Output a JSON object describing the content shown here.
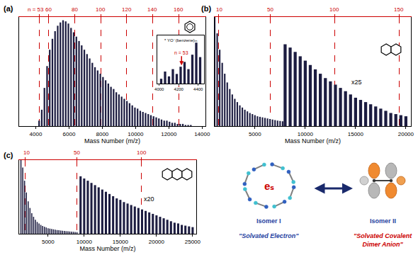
{
  "chart_data": [
    {
      "type": "bar",
      "panel": "(a)",
      "x_title": "Mass Number (m/z)",
      "color": "#1c1c40",
      "x": [
        4200,
        4360,
        4520,
        4680,
        4840,
        5000,
        5160,
        5320,
        5480,
        5640,
        5800,
        5960,
        6120,
        6280,
        6440,
        6600,
        6760,
        6920,
        7080,
        7240,
        7400,
        7560,
        7720,
        7880,
        8040,
        8200,
        8360,
        8520,
        8680,
        8840,
        9000,
        9160,
        9320,
        9480,
        9640,
        9800,
        9960,
        10120,
        10280,
        10440,
        10600,
        10760,
        10920,
        11080,
        11240,
        11400,
        11560,
        11720,
        11880,
        12040,
        12200,
        12360,
        12520,
        12680,
        12840,
        13000,
        13160,
        13320
      ],
      "values": [
        5,
        15,
        35,
        55,
        70,
        80,
        87,
        92,
        95,
        97,
        96,
        94,
        90,
        86,
        82,
        78,
        74,
        70,
        66,
        62,
        58,
        54,
        51,
        48,
        45,
        42,
        39,
        36,
        34,
        31,
        29,
        27,
        25,
        23,
        21,
        19,
        17,
        16,
        14,
        13,
        12,
        11,
        10,
        9,
        8,
        7,
        6,
        5,
        5,
        4,
        3,
        3,
        2,
        2,
        2,
        1,
        1,
        1
      ],
      "xlim": [
        3000,
        14200
      ],
      "xticks": [
        4000,
        6000,
        8000,
        10000,
        12000,
        14000
      ],
      "ylim": [
        0,
        100
      ],
      "tick_labels": "x",
      "grid": true,
      "x2lim": [
        3000,
        14200
      ],
      "x2ticks": [
        {
          "value": 4229,
          "label": "n = 53"
        },
        {
          "value": 4776,
          "label": "60"
        },
        {
          "value": 6338,
          "label": "80"
        },
        {
          "value": 7900,
          "label": "100"
        },
        {
          "value": 9462,
          "label": "120"
        },
        {
          "value": 11024,
          "label": "140"
        },
        {
          "value": 12586,
          "label": "160"
        }
      ],
      "inset": {
        "title": "* YO⁻(benzene)ₘ",
        "color": "#1c1c40",
        "x": [
          4020,
          4060,
          4100,
          4140,
          4180,
          4220,
          4260,
          4300,
          4340,
          4380,
          4420
        ],
        "values": [
          10,
          25,
          15,
          30,
          20,
          35,
          45,
          30,
          60,
          85,
          55
        ],
        "xlim": [
          3980,
          4460
        ],
        "xticks": [
          4000,
          4200,
          4400
        ],
        "ylim": [
          0,
          100
        ],
        "tick_labels": "x",
        "arrow": {
          "text": "n = 53",
          "x": 4229
        }
      }
    },
    {
      "type": "bar",
      "panel": "(b)",
      "x_title": "Mass Number (m/z)",
      "color": "#1c1c40",
      "x": [
        1000,
        1250,
        1500,
        1750,
        2000,
        2250,
        2500,
        2750,
        3000,
        3250,
        3500,
        3750,
        4000,
        4250,
        4500,
        4750,
        5000,
        5250,
        5500,
        5750,
        6000,
        6250,
        6500,
        6750,
        7000,
        7250,
        7500,
        7750,
        8000
      ],
      "values": [
        100,
        85,
        70,
        58,
        48,
        40,
        34,
        29,
        25,
        22,
        19,
        17,
        15,
        13.5,
        12,
        11,
        10,
        9,
        8.5,
        8,
        7.5,
        7,
        6.5,
        6,
        5.5,
        5,
        4.7,
        4.4,
        4.1
      ],
      "xlim": [
        1000,
        20500
      ],
      "xticks": [
        5000,
        10000,
        15000,
        20000
      ],
      "ylim": [
        0,
        100
      ],
      "tick_labels": "x",
      "grid": true,
      "x2lim": [
        1000,
        20500
      ],
      "x2ticks": [
        {
          "value": 1371,
          "label": "10"
        },
        {
          "value": 6498,
          "label": "50"
        },
        {
          "value": 12906,
          "label": "100"
        },
        {
          "value": 19315,
          "label": "150"
        }
      ],
      "magnified": {
        "label": "x25",
        "x": [
          8000,
          8500,
          9000,
          9500,
          10000,
          10500,
          11000,
          11500,
          12000,
          12500,
          13000,
          13500,
          14000,
          14500,
          15000,
          15500,
          16000,
          16500,
          17000,
          17500,
          18000,
          18500,
          19000,
          19500,
          20000
        ],
        "values": [
          75,
          72,
          68,
          64,
          60,
          56,
          52,
          48,
          44,
          41,
          38,
          35,
          32,
          29,
          26,
          24,
          22,
          20,
          18,
          16,
          14,
          12,
          11,
          10,
          9
        ]
      }
    },
    {
      "type": "bar",
      "panel": "(c)",
      "x_title": "Mass Number (m/z)",
      "color": "#1c1c40",
      "x": [
        1250,
        1500,
        1750,
        2000,
        2250,
        2500,
        2750,
        3000,
        3250,
        3500,
        3750,
        4000,
        4250,
        4500,
        4750,
        5000,
        5250,
        5500,
        5750,
        6000,
        6250,
        6500,
        6750,
        7000,
        7250,
        7500,
        7750,
        8000,
        8250,
        8500,
        8750,
        9000
      ],
      "values": [
        100,
        90,
        72,
        56,
        44,
        35,
        28,
        23,
        19,
        16,
        14,
        12,
        10.5,
        9.5,
        8.5,
        7.5,
        7,
        6.5,
        6,
        5.5,
        5,
        4.7,
        4.4,
        4.1,
        3.8,
        3.5,
        3.3,
        3.1,
        2.9,
        2.7,
        2.5,
        2.3
      ],
      "xlim": [
        1000,
        25500
      ],
      "xticks": [
        5000,
        10000,
        15000,
        20000,
        25000
      ],
      "ylim": [
        0,
        100
      ],
      "tick_labels": "x",
      "grid": true,
      "x2lim": [
        1000,
        25500
      ],
      "x2ticks": [
        {
          "value": 1871,
          "label": "10"
        },
        {
          "value": 9001,
          "label": "50"
        },
        {
          "value": 17912,
          "label": "100"
        }
      ],
      "magnified": {
        "label": "x20",
        "x": [
          9500,
          10000,
          10500,
          11000,
          11500,
          12000,
          12500,
          13000,
          13500,
          14000,
          14500,
          15000,
          15500,
          16000,
          16500,
          17000,
          17500,
          18000,
          18500,
          19000,
          19500,
          20000,
          20500,
          21000,
          21500,
          22000,
          22500,
          23000,
          23500,
          24000,
          24500,
          25000
        ],
        "values": [
          78,
          75,
          72,
          69,
          66,
          63,
          60,
          57,
          54,
          51,
          48,
          46,
          43,
          41,
          39,
          37,
          35,
          33,
          31,
          29,
          27,
          25,
          23,
          21,
          19,
          17,
          15,
          14,
          12,
          11,
          10,
          9
        ]
      }
    }
  ],
  "diagram": {
    "center": "eₛ",
    "isomer_1": {
      "label": "Isomer I",
      "name": [
        "\"Solvated Electron\""
      ]
    },
    "isomer_2": {
      "label": "Isomer II",
      "name": [
        "\"Solvated Covalent",
        "Dimer Anion\""
      ]
    }
  }
}
